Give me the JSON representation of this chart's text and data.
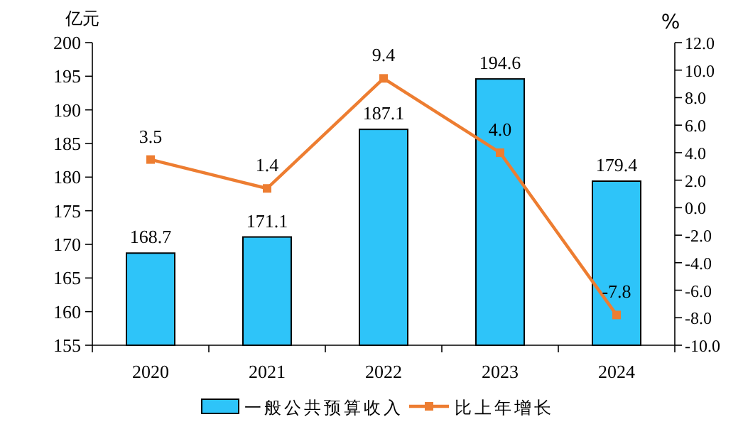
{
  "chart_data": {
    "type": "bar",
    "categories": [
      "2020",
      "2021",
      "2022",
      "2023",
      "2024"
    ],
    "series": [
      {
        "name": "一般公共预算收入",
        "color": "#2ec4f9",
        "values": [
          168.7,
          171.1,
          187.1,
          194.6,
          179.4
        ]
      },
      {
        "name": "比上年增长",
        "type": "line",
        "axis": "y2",
        "color": "#ed7d31",
        "marker": "square",
        "values": [
          3.5,
          1.4,
          9.4,
          4.0,
          -7.8
        ],
        "value_labels": [
          "3.5",
          "1.4",
          "9.4",
          "4.0",
          "-7.8"
        ]
      }
    ],
    "ylabel": "亿元",
    "y2label": "%",
    "data_labels": true,
    "legend": "bottom",
    "ylim": [
      155,
      200
    ],
    "yticks": [
      155,
      160,
      165,
      170,
      175,
      180,
      185,
      190,
      195,
      200
    ],
    "y2lim": [
      -10,
      12
    ],
    "y2ticks": [
      {
        "value": -10,
        "label": "-10.0"
      },
      {
        "value": -8,
        "label": "-8.0"
      },
      {
        "value": -6,
        "label": "-6.0"
      },
      {
        "value": -4,
        "label": "-4.0"
      },
      {
        "value": -2,
        "label": "-2.0"
      },
      {
        "value": 0,
        "label": "0.0"
      },
      {
        "value": 2,
        "label": "2.0"
      },
      {
        "value": 4,
        "label": "4.0"
      },
      {
        "value": 6,
        "label": "6.0"
      },
      {
        "value": 8,
        "label": "8.0"
      },
      {
        "value": 10,
        "label": "10.0"
      },
      {
        "value": 12,
        "label": "12.0"
      }
    ]
  }
}
